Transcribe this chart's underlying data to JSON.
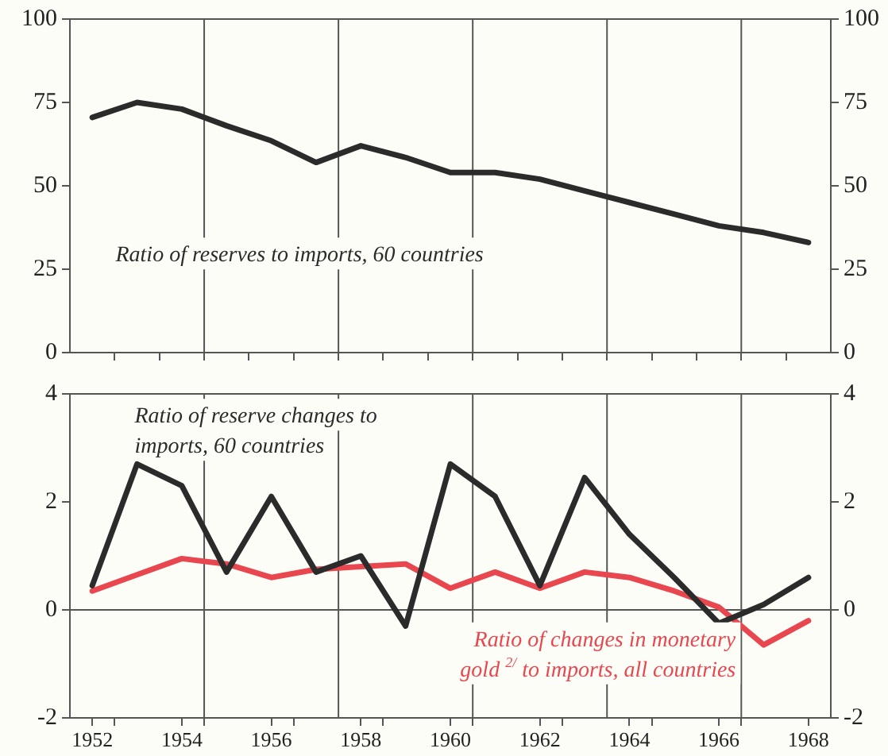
{
  "chart_data": [
    {
      "type": "line",
      "x": [
        1952,
        1953,
        1954,
        1955,
        1956,
        1957,
        1958,
        1959,
        1960,
        1961,
        1962,
        1963,
        1964,
        1965,
        1966,
        1967,
        1968
      ],
      "series": [
        {
          "name": "Ratio of reserves to imports, 60 countries",
          "color": "#2b2b2b",
          "values": [
            70.5,
            75,
            73,
            68,
            63.5,
            57,
            62,
            58.5,
            54,
            54,
            52,
            48.5,
            45,
            41.5,
            38,
            36,
            33
          ]
        }
      ],
      "xlim": [
        1951.5,
        1968.5
      ],
      "xticks": [
        {
          "value": 1952.5,
          "label": null
        },
        {
          "value": 1953.5,
          "label": null
        },
        {
          "value": 1954.5,
          "label": null
        },
        {
          "value": 1955.5,
          "label": null
        },
        {
          "value": 1956.5,
          "label": null
        },
        {
          "value": 1957.5,
          "label": null
        },
        {
          "value": 1958.5,
          "label": null
        },
        {
          "value": 1959.5,
          "label": null
        },
        {
          "value": 1960.5,
          "label": null
        },
        {
          "value": 1961.5,
          "label": null
        },
        {
          "value": 1962.5,
          "label": null
        },
        {
          "value": 1963.5,
          "label": null
        },
        {
          "value": 1964.5,
          "label": null
        },
        {
          "value": 1965.5,
          "label": null
        },
        {
          "value": 1966.5,
          "label": null
        },
        {
          "value": 1967.5,
          "label": null
        }
      ],
      "ylim": [
        0,
        100
      ],
      "yticks": [
        0,
        25,
        50,
        75,
        100
      ],
      "y2lim": [
        0,
        100
      ],
      "y2ticks": [
        0,
        25,
        50,
        75,
        100
      ],
      "tick_labels": "y",
      "grid": false,
      "legend": false,
      "marker": "none",
      "line_style": "solid",
      "ref_lines": [
        {
          "axis": "x",
          "value": 1954.5,
          "color": "#555555"
        },
        {
          "axis": "x",
          "value": 1957.5,
          "color": "#555555"
        },
        {
          "axis": "x",
          "value": 1960.5,
          "color": "#555555"
        },
        {
          "axis": "x",
          "value": 1963.5,
          "color": "#555555"
        },
        {
          "axis": "x",
          "value": 1966.5,
          "color": "#555555"
        }
      ]
    },
    {
      "type": "line",
      "x": [
        1952,
        1953,
        1954,
        1955,
        1956,
        1957,
        1958,
        1959,
        1960,
        1961,
        1962,
        1963,
        1964,
        1965,
        1966,
        1967,
        1968
      ],
      "series": [
        {
          "name": "Ratio of reserve changes to imports, 60 countries",
          "color": "#2b2b2b",
          "values": [
            0.45,
            2.7,
            2.3,
            0.7,
            2.1,
            0.7,
            1.0,
            -0.3,
            2.7,
            2.1,
            0.45,
            2.45,
            1.4,
            0.6,
            -0.25,
            0.1,
            0.6
          ]
        },
        {
          "name": "Ratio of changes in monetary gold $^{2/}$ to imports, all countries",
          "color": "#e8474f",
          "values": [
            0.35,
            0.65,
            0.95,
            0.85,
            0.6,
            0.75,
            0.8,
            0.85,
            0.4,
            0.7,
            0.4,
            0.7,
            0.6,
            0.35,
            0.05,
            -0.65,
            -0.2
          ]
        }
      ],
      "xlim": [
        1951.5,
        1968.5
      ],
      "xticks": [
        1952,
        {
          "value": 1952.5,
          "label": null
        },
        1954,
        {
          "value": 1954.5,
          "label": null
        },
        1956,
        {
          "value": 1956.5,
          "label": null
        },
        1958,
        {
          "value": 1958.5,
          "label": null
        },
        1960,
        {
          "value": 1960.5,
          "label": null
        },
        1962,
        {
          "value": 1962.5,
          "label": null
        },
        1964,
        {
          "value": 1964.5,
          "label": null
        },
        1966,
        {
          "value": 1966.5,
          "label": null
        },
        1968
      ],
      "ylim": [
        -2,
        4
      ],
      "yticks": [
        -2,
        0,
        2,
        4
      ],
      "y2lim": [
        -2,
        4
      ],
      "y2ticks": [
        -2,
        0,
        2,
        4
      ],
      "grid": false,
      "legend": false,
      "marker": "none",
      "line_style": "solid",
      "ref_lines": [
        {
          "axis": "y",
          "value": 0,
          "color": "#555555"
        },
        {
          "axis": "x",
          "value": 1954.5,
          "color": "#555555"
        },
        {
          "axis": "x",
          "value": 1957.5,
          "color": "#555555"
        },
        {
          "axis": "x",
          "value": 1960.5,
          "color": "#555555"
        },
        {
          "axis": "x",
          "value": 1963.5,
          "color": "#555555"
        },
        {
          "axis": "x",
          "value": 1966.5,
          "color": "#555555"
        }
      ]
    }
  ]
}
